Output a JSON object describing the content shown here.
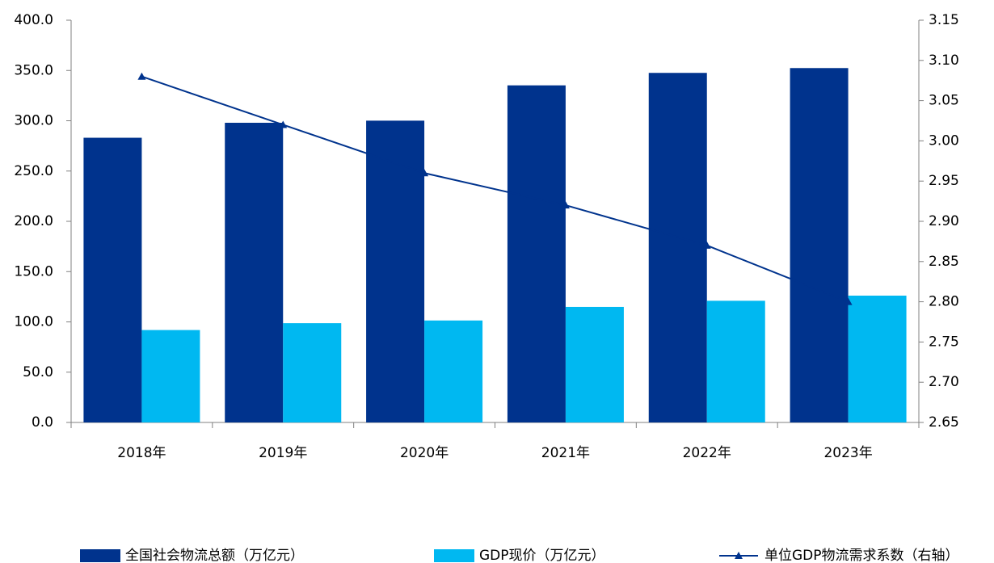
{
  "chart_data": {
    "type": "bar_line",
    "categories": [
      "2018年",
      "2019年",
      "2020年",
      "2021年",
      "2022年",
      "2023年"
    ],
    "series": [
      {
        "name": "全国社会物流总额（万亿元）",
        "color": "#00338d",
        "type": "bar",
        "values": [
          283.1,
          298.0,
          300.1,
          335.2,
          347.6,
          352.4
        ]
      },
      {
        "name": "GDP现价（万亿元）",
        "color": "#00b8f1",
        "type": "bar",
        "values": [
          91.9,
          98.7,
          101.4,
          114.9,
          121.0,
          126.1
        ]
      },
      {
        "name": "单位GDP物流需求系数（右轴）",
        "color": "#00338d",
        "type": "line",
        "axis": "y2",
        "values": [
          3.08,
          3.02,
          2.96,
          2.92,
          2.87,
          2.8
        ]
      }
    ],
    "ylim": [
      0,
      400
    ],
    "yticks": [
      {
        "value": 0,
        "label": "0.0"
      },
      {
        "value": 50,
        "label": "50.0"
      },
      {
        "value": 100,
        "label": "100.0"
      },
      {
        "value": 150,
        "label": "150.0"
      },
      {
        "value": 200,
        "label": "200.0"
      },
      {
        "value": 250,
        "label": "250.0"
      },
      {
        "value": 300,
        "label": "300.0"
      },
      {
        "value": 350,
        "label": "350.0"
      },
      {
        "value": 400,
        "label": "400.0"
      }
    ],
    "y2lim": [
      2.65,
      3.15
    ],
    "y2ticks": [
      2.65,
      {
        "value": 2.7,
        "label": "2.70"
      },
      2.75,
      {
        "value": 2.8,
        "label": "2.80"
      },
      2.85,
      {
        "value": 2.9,
        "label": "2.90"
      },
      2.95,
      {
        "value": 3.0,
        "label": "3.00"
      },
      3.05,
      {
        "value": 3.1,
        "label": "3.10"
      },
      3.15
    ],
    "legend": "bottom",
    "grid": false
  }
}
